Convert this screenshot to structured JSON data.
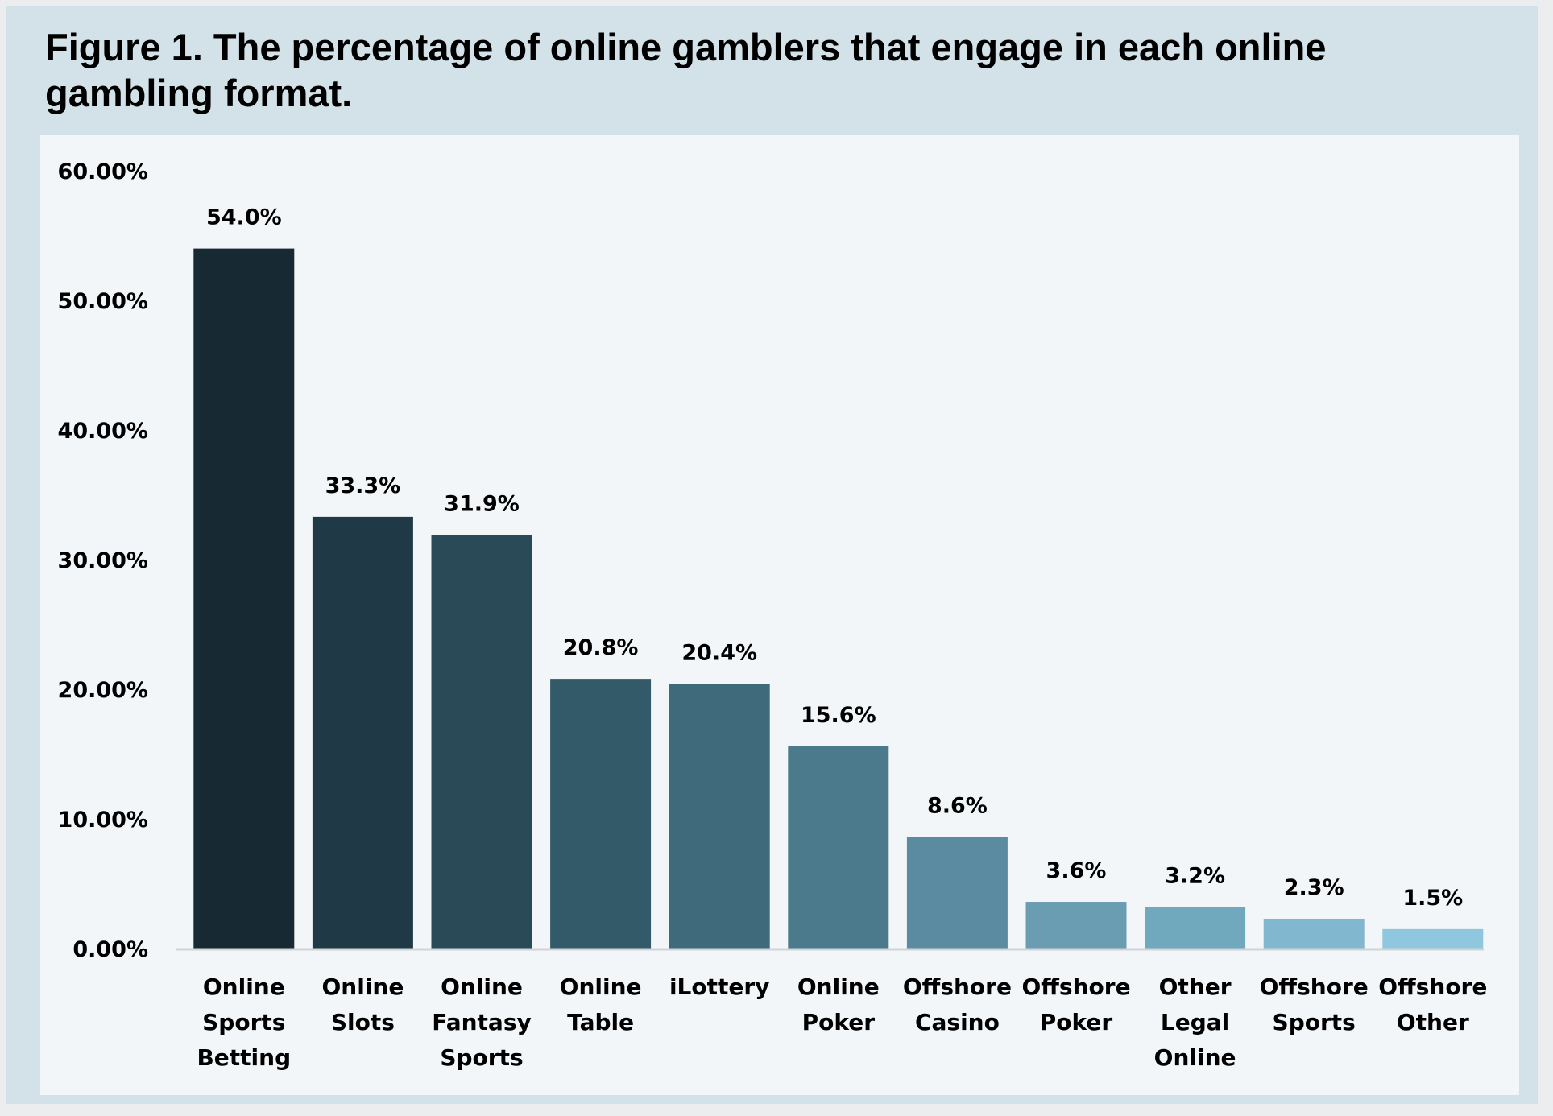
{
  "figure": {
    "title": "Figure 1. The percentage of online gamblers that engage in each online gambling format."
  },
  "chart_data": {
    "type": "bar",
    "title": "Figure 1. The percentage of online gamblers that engage in each online gambling format.",
    "xlabel": "",
    "ylabel": "",
    "ylim": [
      0,
      60
    ],
    "grid": false,
    "legend": "none",
    "y_ticks": [
      "0.00%",
      "10.00%",
      "20.00%",
      "30.00%",
      "40.00%",
      "50.00%",
      "60.00%"
    ],
    "y_tick_values": [
      0,
      10,
      20,
      30,
      40,
      50,
      60
    ],
    "categories": [
      [
        "Online",
        "Sports",
        "Betting"
      ],
      [
        "Online",
        "Slots"
      ],
      [
        "Online",
        "Fantasy",
        "Sports"
      ],
      [
        "Online",
        "Table"
      ],
      [
        "iLottery"
      ],
      [
        "Online",
        "Poker"
      ],
      [
        "Offshore",
        "Casino"
      ],
      [
        "Offshore",
        "Poker"
      ],
      [
        "Other",
        "Legal",
        "Online"
      ],
      [
        "Offshore",
        "Sports"
      ],
      [
        "Offshore",
        "Other"
      ]
    ],
    "values": [
      54.0,
      33.3,
      31.9,
      20.8,
      20.4,
      15.6,
      8.6,
      3.6,
      3.2,
      2.3,
      1.5
    ],
    "value_labels": [
      "54.0%",
      "33.3%",
      "31.9%",
      "20.8%",
      "20.4%",
      "15.6%",
      "8.6%",
      "3.6%",
      "3.2%",
      "2.3%",
      "1.5%"
    ],
    "bar_colors": [
      "#172a33",
      "#1f3a46",
      "#294a56",
      "#325a68",
      "#3f6a7b",
      "#4a7a8c",
      "#5a8ba0",
      "#6a9db2",
      "#70a8be",
      "#82b8cf",
      "#8fc7df"
    ],
    "axis_color": "#d0d4d7"
  }
}
